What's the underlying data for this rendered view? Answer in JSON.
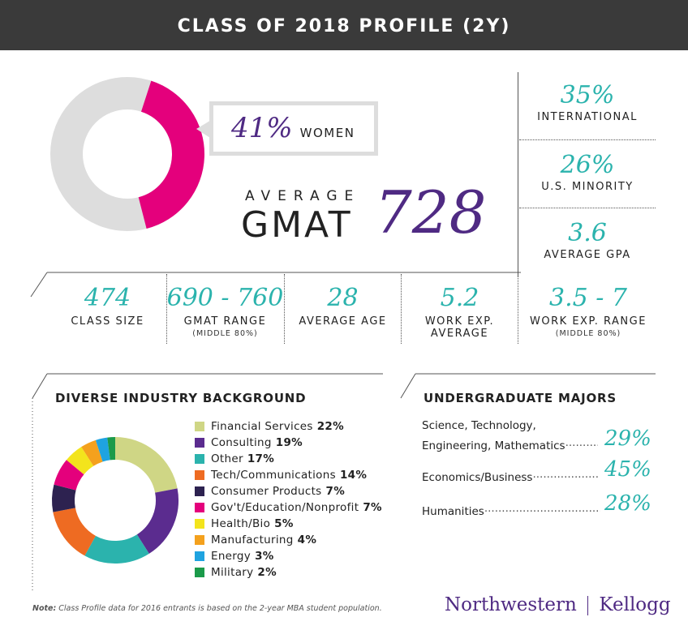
{
  "header": {
    "title": "CLASS OF 2018 PROFILE (2Y)"
  },
  "women": {
    "pct": "41%",
    "label": "WOMEN",
    "fraction": 0.41
  },
  "gmat": {
    "line1": "AVERAGE",
    "line2": "GMAT",
    "value": "728"
  },
  "side_stats": [
    {
      "value": "35%",
      "label": "INTERNATIONAL"
    },
    {
      "value": "26%",
      "label": "U.S. MINORITY"
    },
    {
      "value": "3.6",
      "label": "AVERAGE GPA"
    }
  ],
  "row_stats": [
    {
      "value": "474",
      "label": "CLASS SIZE",
      "sub": ""
    },
    {
      "value": "690 - 760",
      "label": "GMAT RANGE",
      "sub": "(MIDDLE 80%)"
    },
    {
      "value": "28",
      "label": "AVERAGE AGE",
      "sub": ""
    },
    {
      "value": "5.2",
      "label": "WORK EXP.",
      "sub": "AVERAGE"
    },
    {
      "value": "3.5 - 7",
      "label": "WORK EXP. RANGE",
      "sub": "(MIDDLE 80%)"
    }
  ],
  "industry": {
    "title": "DIVERSE INDUSTRY BACKGROUND"
  },
  "majors": {
    "title": "UNDERGRADUATE MAJORS",
    "items": [
      {
        "line1": "Science, Technology,",
        "line2": "Engineering, Mathematics",
        "pct": "29%"
      },
      {
        "line1": "",
        "line2": "Economics/Business",
        "pct": "45%"
      },
      {
        "line1": "",
        "line2": "Humanities",
        "pct": "28%"
      }
    ]
  },
  "footer": {
    "note_label": "Note:",
    "note_text": " Class Profile data for 2016 entrants is based on the 2-year MBA student population.",
    "logo_left": "Northwestern",
    "logo_right": "Kellogg"
  },
  "colors": {
    "teal": "#2bb3ad",
    "purple": "#4f2a83",
    "magenta": "#e4007c",
    "gray": "#dddddd",
    "banner": "#3a3a3a"
  },
  "chart_data": [
    {
      "type": "pie",
      "categories": [
        "WOMEN",
        ""
      ],
      "values": [
        41,
        59
      ],
      "colors": [
        "#e4007c",
        "#dddddd"
      ]
    },
    {
      "type": "pie",
      "categories": [
        "Financial Services",
        "Consulting",
        "Other",
        "Tech/Communications",
        "Consumer Products",
        "Gov't/Education/Nonprofit",
        "Health/Bio",
        "Manufacturing",
        "Energy",
        "Military"
      ],
      "labels": [
        "22%",
        "19%",
        "17%",
        "14%",
        "7%",
        "7%",
        "5%",
        "4%",
        "3%",
        "2%"
      ],
      "values": [
        22,
        19,
        17,
        14,
        7,
        7,
        5,
        4,
        3,
        2
      ],
      "colors": [
        "#cfd685",
        "#5b2c8f",
        "#2bb3ad",
        "#ee6b22",
        "#2d2250",
        "#e4007c",
        "#f3e41c",
        "#f4a11d",
        "#1fa3e0",
        "#1b9a4a"
      ]
    }
  ]
}
